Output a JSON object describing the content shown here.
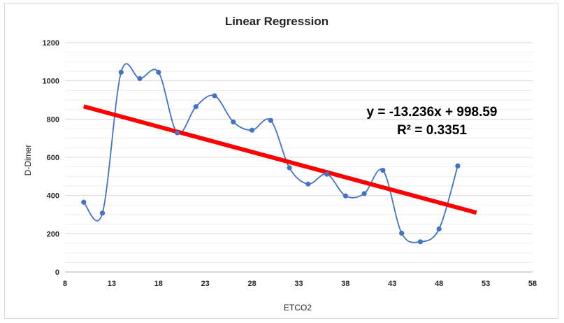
{
  "chart_data": {
    "type": "scatter",
    "title": "Linear Regression",
    "xlabel": "ETCO2",
    "ylabel": "D-Dimer",
    "xlim": [
      8,
      58
    ],
    "ylim": [
      0,
      1200
    ],
    "xticks": [
      8,
      13,
      18,
      23,
      28,
      33,
      38,
      43,
      48,
      53,
      58
    ],
    "yticks": [
      0,
      200,
      400,
      600,
      800,
      1000,
      1200
    ],
    "grid": "horizontal",
    "legend": "none",
    "series": [
      {
        "smooth": true,
        "color": "#4472c4",
        "x": [
          10,
          12,
          14,
          16,
          18,
          20,
          22,
          24,
          26,
          28,
          30,
          32,
          34,
          36,
          38,
          40,
          42,
          44,
          46,
          48,
          50
        ],
        "y": [
          365,
          308,
          1045,
          1012,
          1045,
          728,
          865,
          922,
          785,
          742,
          793,
          545,
          460,
          512,
          398,
          410,
          532,
          203,
          158,
          225,
          555
        ]
      }
    ],
    "trendline": {
      "color": "#ff0000",
      "slope": -13.236,
      "intercept": 998.59,
      "x_range": [
        10,
        52
      ],
      "equation": "y = -13.236x + 998.59",
      "r_squared": "R² = 0.3351"
    }
  }
}
